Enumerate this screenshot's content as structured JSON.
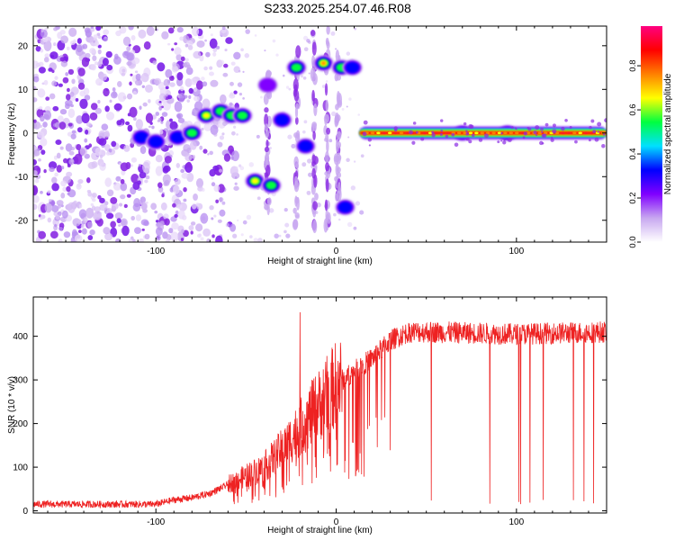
{
  "figure": {
    "title": "S233.2025.254.07.46.R08"
  },
  "chart_data": [
    {
      "type": "heatmap",
      "xlabel": "Height of straight line (km)",
      "ylabel": "Frequency (Hz)",
      "xlim": [
        -168,
        150
      ],
      "ylim": [
        -25,
        24.5
      ],
      "xticks": [
        -100,
        0,
        100
      ],
      "xtick_labels": [
        "-100",
        "0",
        "100"
      ],
      "yticks": [
        -20,
        -10,
        0,
        10,
        20
      ],
      "ytick_labels": [
        "-20",
        "-10",
        "0",
        "10",
        "20"
      ],
      "colorbar": {
        "label": "Normalized spectral amplitude",
        "range": [
          0,
          0.98
        ],
        "ticks": [
          0.0,
          0.2,
          0.4,
          0.6,
          0.8
        ],
        "tick_labels": [
          "0.0",
          "0.2",
          "0.4",
          "0.6",
          "0.8"
        ],
        "colors": [
          "#ffffff",
          "#c8a8f0",
          "#8000ff",
          "#0000ff",
          "#00e0ff",
          "#00ff40",
          "#ffff00",
          "#ff8000",
          "#ff0000",
          "#ff0080"
        ]
      },
      "features": {
        "noise_region_x": [
          -168,
          -75
        ],
        "carrier": {
          "freq": 0,
          "x": [
            13,
            150
          ],
          "amplitude": 0.9
        },
        "blobs": [
          {
            "x": -108,
            "y": -1,
            "a": 0.3
          },
          {
            "x": -100,
            "y": -2,
            "a": 0.25
          },
          {
            "x": -88,
            "y": -1,
            "a": 0.35
          },
          {
            "x": -80,
            "y": 0,
            "a": 0.4
          },
          {
            "x": -72,
            "y": 4,
            "a": 0.55
          },
          {
            "x": -64,
            "y": 5,
            "a": 0.5
          },
          {
            "x": -58,
            "y": 4,
            "a": 0.45
          },
          {
            "x": -52,
            "y": 4,
            "a": 0.5
          },
          {
            "x": -45,
            "y": -11,
            "a": 0.55
          },
          {
            "x": -36,
            "y": -12,
            "a": 0.5
          },
          {
            "x": -38,
            "y": 11,
            "a": 0.2
          },
          {
            "x": -30,
            "y": 3,
            "a": 0.3
          },
          {
            "x": -22,
            "y": 15,
            "a": 0.45
          },
          {
            "x": -17,
            "y": -3,
            "a": 0.25
          },
          {
            "x": -7,
            "y": 16,
            "a": 0.7
          },
          {
            "x": 3,
            "y": 15,
            "a": 0.4
          },
          {
            "x": 9,
            "y": 15,
            "a": 0.35
          },
          {
            "x": 5,
            "y": -17,
            "a": 0.3
          },
          {
            "x": 70,
            "y": 0,
            "a": 0.3
          },
          {
            "x": 95,
            "y": 0,
            "a": 0.3
          }
        ],
        "streaks": [
          {
            "x": -38,
            "y": [
              -18,
              14
            ]
          },
          {
            "x": -22,
            "y": [
              -22,
              22
            ]
          },
          {
            "x": -12,
            "y": [
              -24,
              24
            ]
          },
          {
            "x": -5,
            "y": [
              -22,
              24
            ]
          },
          {
            "x": 1,
            "y": [
              -20,
              20
            ]
          }
        ]
      }
    },
    {
      "type": "line",
      "xlabel": "Height of straight line (km)",
      "ylabel": "SNR (10 * v/v)",
      "xlim": [
        -168,
        150
      ],
      "ylim": [
        -5,
        490
      ],
      "xticks": [
        -100,
        0,
        100
      ],
      "xtick_labels": [
        "-100",
        "0",
        "100"
      ],
      "yticks": [
        0,
        100,
        200,
        300,
        400
      ],
      "ytick_labels": [
        "0",
        "100",
        "200",
        "300",
        "400"
      ],
      "color": "#ee2222",
      "trend": {
        "x": [
          -168,
          -100,
          -90,
          -80,
          -70,
          -60,
          -50,
          -40,
          -30,
          -20,
          -10,
          0,
          10,
          20,
          30,
          40,
          50,
          100,
          150
        ],
        "y": [
          15,
          15,
          25,
          30,
          40,
          60,
          80,
          100,
          140,
          190,
          240,
          290,
          320,
          350,
          390,
          410,
          410,
          405,
          410
        ]
      },
      "dropouts_start_x": 40,
      "max_spike": {
        "x": -20,
        "y": 455
      }
    }
  ]
}
